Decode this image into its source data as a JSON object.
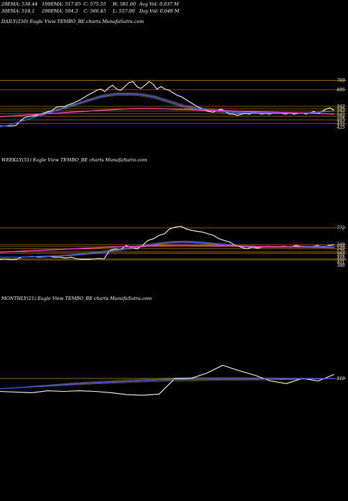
{
  "stats": {
    "row1": [
      "20EMA: 538.44",
      "100EMA: 517.85",
      "C: 575.55",
      "H: 581.00",
      "Avg Vol: 0.037  M"
    ],
    "row2": [
      "30EMA: 518.1",
      "200EMA: 504.3",
      "C: 566.45",
      "L: 557.00",
      "Day Vol: 0.048  M"
    ]
  },
  "panels": [
    {
      "title": "DAILY(250) Eagle  View  TEMBO_BE charts MunafaSutra.com",
      "levels": [
        "769",
        "695",
        "562",
        "543",
        "525",
        "504",
        "483",
        "455",
        "425"
      ]
    },
    {
      "title": "WEEKLY(51) Eagle  View  TEMBO_BE charts MunafaSutra.com",
      "levels": [
        "772",
        "569",
        "549",
        "520",
        "484",
        "466",
        "401",
        "388"
      ]
    },
    {
      "title": "MONTHLY(21) Eagle  View  TEMBO_BE charts MunafaSutra.com",
      "levels": [
        "519"
      ]
    }
  ],
  "colors": {
    "background": "#000000",
    "price": "#ffffff",
    "ema_short": "#3355ff",
    "ema_long": "#ff44cc",
    "bands": "#cc8800",
    "ema_gold": "#c8a060"
  },
  "chart_data": [
    {
      "type": "line",
      "timeframe": "daily",
      "y_levels": [
        769,
        695,
        562,
        543,
        525,
        504,
        483,
        455,
        425
      ],
      "ylim": [
        400,
        800
      ],
      "series": [
        {
          "key": "price",
          "values": [
            405,
            405,
            405,
            405,
            410,
            445,
            470,
            480,
            485,
            490,
            500,
            510,
            520,
            530,
            555,
            560,
            560,
            575,
            585,
            600,
            615,
            635,
            655,
            670,
            690,
            700,
            680,
            710,
            730,
            700,
            690,
            720,
            750,
            760,
            720,
            705,
            730,
            760,
            740,
            700,
            720,
            700,
            690,
            670,
            650,
            640,
            620,
            600,
            580,
            560,
            545,
            530,
            520,
            515,
            530,
            540,
            520,
            500,
            500,
            490,
            500,
            505,
            500,
            520,
            510,
            500,
            505,
            500,
            510,
            515,
            505,
            500,
            510,
            500,
            505,
            510,
            500,
            510,
            520,
            505,
            520,
            540,
            550,
            530
          ]
        },
        {
          "key": "ema_short",
          "values": [
            400,
            405,
            410,
            420,
            430,
            440,
            450,
            460,
            470,
            480,
            490,
            500,
            510,
            520,
            530,
            540,
            550,
            560,
            570,
            580,
            590,
            600,
            610,
            620,
            630,
            640,
            645,
            650,
            655,
            660,
            660,
            660,
            660,
            660,
            658,
            655,
            650,
            645,
            640,
            630,
            620,
            610,
            600,
            590,
            580,
            570,
            560,
            555,
            550,
            545,
            540,
            535,
            530,
            528,
            525,
            522,
            520,
            518,
            515,
            512,
            510,
            510,
            510,
            510,
            510,
            508,
            508,
            508,
            508,
            508,
            508,
            508,
            508,
            508,
            508,
            508,
            508,
            510,
            512,
            515,
            518,
            520,
            522,
            524
          ]
        },
        {
          "key": "ema_long",
          "values": [
            480,
            482,
            484,
            486,
            488,
            490,
            492,
            494,
            496,
            498,
            500,
            502,
            504,
            506,
            508,
            510,
            512,
            514,
            516,
            518,
            520,
            522,
            524,
            526,
            528,
            530,
            532,
            534,
            536,
            538,
            540,
            541,
            542,
            543,
            544,
            545,
            545,
            545,
            545,
            544,
            543,
            542,
            541,
            540,
            539,
            538,
            537,
            536,
            535,
            534,
            533,
            532,
            531,
            530,
            529,
            528,
            527,
            526,
            525,
            524,
            523,
            522,
            521,
            520,
            519,
            518,
            517,
            516,
            515,
            514,
            513,
            512,
            511,
            510,
            509,
            508,
            507,
            506,
            505,
            504,
            503,
            502,
            501,
            500
          ]
        }
      ]
    },
    {
      "type": "line",
      "timeframe": "weekly",
      "y_levels": [
        772,
        569,
        549,
        520,
        484,
        466,
        401,
        388
      ],
      "ylim": [
        300,
        900
      ],
      "series": [
        {
          "key": "price",
          "values": [
            395,
            400,
            390,
            395,
            420,
            425,
            430,
            420,
            425,
            430,
            420,
            420,
            410,
            420,
            400,
            395,
            395,
            400,
            405,
            400,
            500,
            520,
            510,
            560,
            540,
            520,
            560,
            620,
            640,
            680,
            700,
            760,
            780,
            790,
            760,
            740,
            730,
            720,
            700,
            680,
            640,
            620,
            600,
            560,
            540,
            520,
            540,
            530,
            540,
            550,
            540,
            545,
            550,
            540,
            560,
            550,
            545,
            550,
            560,
            540,
            560,
            570
          ]
        },
        {
          "key": "ema_short",
          "values": [
            420,
            420,
            420,
            420,
            422,
            424,
            426,
            428,
            430,
            432,
            434,
            436,
            440,
            444,
            450,
            456,
            462,
            470,
            478,
            486,
            494,
            502,
            512,
            522,
            532,
            542,
            552,
            562,
            572,
            582,
            590,
            596,
            600,
            602,
            602,
            600,
            596,
            592,
            586,
            580,
            574,
            568,
            562,
            556,
            552,
            548,
            546,
            544,
            542,
            542,
            542,
            542,
            543,
            544,
            545,
            546,
            547,
            548,
            549,
            550,
            551,
            552
          ]
        },
        {
          "key": "ema_long",
          "values": [
            480,
            483,
            486,
            489,
            492,
            495,
            498,
            501,
            504,
            507,
            510,
            513,
            516,
            519,
            522,
            525,
            528,
            531,
            534,
            537,
            540,
            542,
            544,
            546,
            548,
            550,
            552,
            554,
            556,
            558,
            560,
            561,
            562,
            562,
            562,
            561,
            560,
            559,
            558,
            557,
            556,
            555,
            554,
            553,
            552,
            551,
            550,
            549,
            548,
            547,
            546,
            545,
            544,
            543,
            542,
            541,
            540,
            539,
            538,
            537,
            536,
            535
          ]
        }
      ]
    },
    {
      "type": "line",
      "timeframe": "monthly",
      "y_levels": [
        519
      ],
      "ylim": [
        300,
        700
      ],
      "series": [
        {
          "key": "price",
          "values": [
            420,
            415,
            410,
            425,
            420,
            425,
            420,
            410,
            395,
            390,
            400,
            520,
            520,
            560,
            620,
            580,
            545,
            500,
            480,
            520,
            500,
            550
          ]
        },
        {
          "key": "ema_short",
          "values": [
            440,
            448,
            456,
            464,
            472,
            480,
            486,
            492,
            498,
            503,
            508,
            511,
            513,
            514,
            515,
            515,
            515,
            516,
            516,
            517,
            518,
            519
          ]
        }
      ]
    }
  ]
}
